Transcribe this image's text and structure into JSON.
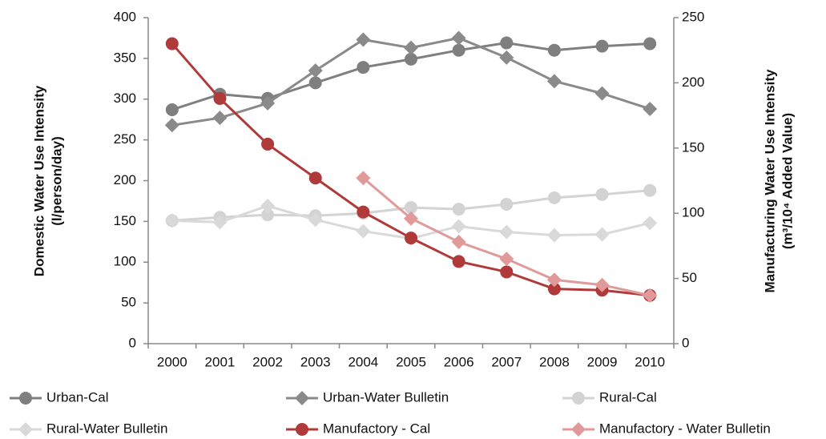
{
  "chart_data": {
    "type": "line",
    "categories": [
      "2000",
      "2001",
      "2002",
      "2003",
      "2004",
      "2005",
      "2006",
      "2007",
      "2008",
      "2009",
      "2010"
    ],
    "ylabel": [
      "Domestic Water Use Intensity",
      "(l/person/day)"
    ],
    "y2label": [
      "Manufacturing Water Use Intensity",
      "(m³/10⁴ Added Value)"
    ],
    "ylim": [
      0,
      400
    ],
    "yticks": [
      0,
      50,
      100,
      150,
      200,
      250,
      300,
      350,
      400
    ],
    "y2lim": [
      0,
      250
    ],
    "y2ticks": [
      0,
      50,
      100,
      150,
      200,
      250
    ],
    "grid": false,
    "legend": "bottom",
    "series": [
      {
        "name": "Urban-Cal",
        "color": "#7f7f7f",
        "marker": "circle",
        "axis": "y",
        "values": [
          287,
          306,
          301,
          320,
          339,
          349,
          360,
          369,
          360,
          365,
          368
        ]
      },
      {
        "name": "Urban-Water Bulletin",
        "color": "#8a8a8a",
        "marker": "diamond",
        "axis": "y",
        "values": [
          268,
          277,
          295,
          335,
          373,
          363,
          375,
          351,
          322,
          307,
          288
        ]
      },
      {
        "name": "Rural-Cal",
        "color": "#d3d3d3",
        "marker": "circle",
        "axis": "y",
        "values": [
          151,
          155,
          158,
          157,
          160,
          167,
          165,
          171,
          179,
          183,
          188
        ]
      },
      {
        "name": "Rural-Water Bulletin",
        "color": "#d9d9d9",
        "marker": "diamond",
        "axis": "y",
        "values": [
          151,
          149,
          169,
          152,
          138,
          129,
          144,
          137,
          133,
          134,
          148
        ]
      },
      {
        "name": "Manufactory - Cal",
        "color": "#b03a3a",
        "marker": "circle",
        "axis": "y2",
        "values": [
          230,
          188,
          153,
          127,
          101,
          81,
          63,
          55,
          42,
          41,
          37
        ]
      },
      {
        "name": "Manufactory - Water Bulletin",
        "color": "#e09a9a",
        "marker": "diamond",
        "axis": "y2",
        "values": [
          null,
          null,
          null,
          null,
          127,
          96,
          78,
          65,
          49,
          45,
          37
        ]
      }
    ]
  }
}
